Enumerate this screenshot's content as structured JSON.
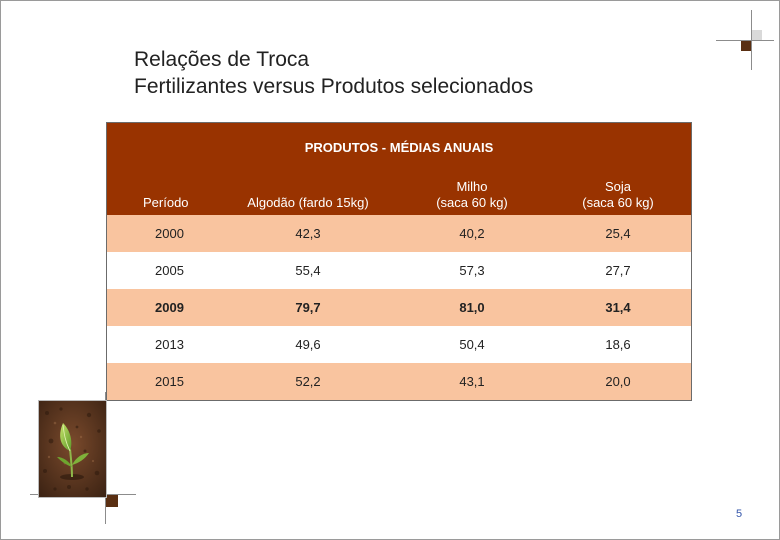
{
  "title": {
    "line1": "Relações de Troca",
    "line2": "Fertilizantes versus Produtos selecionados"
  },
  "table": {
    "group_header": "PRODUTOS - MÉDIAS ANUAIS",
    "columns": [
      {
        "line1": "Período",
        "line2": ""
      },
      {
        "line1": "Algodão (fardo 15kg)",
        "line2": ""
      },
      {
        "line1": "Milho",
        "line2": "(saca 60 kg)"
      },
      {
        "line1": "Soja",
        "line2": "(saca 60 kg)"
      }
    ],
    "rows": [
      {
        "cells": [
          "2000",
          "42,3",
          "40,2",
          "25,4"
        ]
      },
      {
        "cells": [
          "2005",
          "55,4",
          "57,3",
          "27,7"
        ]
      },
      {
        "cells": [
          "2009",
          "79,7",
          "81,0",
          "31,4"
        ]
      },
      {
        "cells": [
          "2013",
          "49,6",
          "50,4",
          "18,6"
        ]
      },
      {
        "cells": [
          "2015",
          "52,2",
          "43,1",
          "20,0"
        ]
      }
    ]
  },
  "colors": {
    "header_bg": "#993300",
    "row_highlight": "#f9c49f",
    "accent_square": "#5a2f12"
  },
  "decor": {
    "plant_image": "seedling-in-soil-icon"
  },
  "page_number": "5"
}
